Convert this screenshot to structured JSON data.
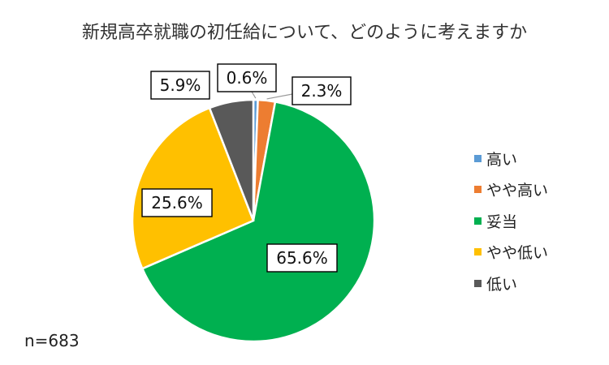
{
  "chart_data": {
    "type": "pie",
    "title": "新規高卒就職の初任給について、どのように考えますか",
    "categories": [
      "高い",
      "やや高い",
      "妥当",
      "やや低い",
      "低い"
    ],
    "values": [
      0.6,
      2.3,
      65.6,
      25.6,
      5.9
    ],
    "data_labels": [
      "0.6%",
      "2.3%",
      "65.6%",
      "25.6%",
      "5.9%"
    ],
    "colors": [
      "#5B9BD5",
      "#ED7D31",
      "#00B050",
      "#FFC000",
      "#595959"
    ],
    "legend_position": "right",
    "sample_size": "n=683"
  }
}
